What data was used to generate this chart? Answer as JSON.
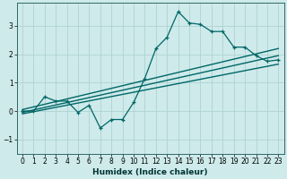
{
  "xlabel": "Humidex (Indice chaleur)",
  "bg_color": "#ceeaea",
  "grid_color": "#aacece",
  "line_color": "#006666",
  "xlim": [
    -0.5,
    23.5
  ],
  "ylim": [
    -1.5,
    3.8
  ],
  "xticks": [
    0,
    1,
    2,
    3,
    4,
    5,
    6,
    7,
    8,
    9,
    10,
    11,
    12,
    13,
    14,
    15,
    16,
    17,
    18,
    19,
    20,
    21,
    22,
    23
  ],
  "yticks": [
    -1,
    0,
    1,
    2,
    3
  ],
  "scatter_x": [
    0,
    1,
    2,
    3,
    4,
    5,
    6,
    7,
    8,
    9,
    10,
    11,
    12,
    13,
    14,
    15,
    16,
    17,
    18,
    19,
    20,
    21,
    22,
    23
  ],
  "scatter_y": [
    0.0,
    0.0,
    0.5,
    0.35,
    0.35,
    -0.05,
    0.2,
    -0.6,
    -0.3,
    -0.3,
    0.3,
    1.15,
    2.2,
    2.6,
    3.5,
    3.1,
    3.05,
    2.8,
    2.8,
    2.25,
    2.25,
    1.95,
    1.75,
    1.8
  ],
  "line1_x": [
    0,
    23
  ],
  "line1_y": [
    0.05,
    2.2
  ],
  "line2_x": [
    0,
    23
  ],
  "line2_y": [
    -0.05,
    1.95
  ],
  "line3_x": [
    0,
    23
  ],
  "line3_y": [
    -0.1,
    1.65
  ]
}
